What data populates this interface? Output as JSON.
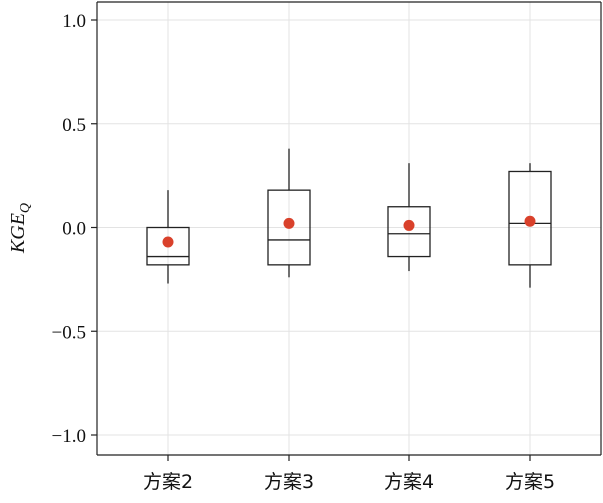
{
  "chart_data": {
    "type": "box",
    "ylabel": "KGE",
    "ylabel_subscript": "Q",
    "ylim": [
      -1.1,
      1.05
    ],
    "yticks": [
      1.0,
      0.5,
      0.0,
      -0.5,
      -1.0
    ],
    "ytick_labels": [
      "1.0",
      "0.5",
      "0.0",
      "−0.5",
      "−1.0"
    ],
    "grid": true,
    "categories": [
      "方案2",
      "方案3",
      "方案4",
      "方案5"
    ],
    "boxes": [
      {
        "whisker_low": -0.27,
        "q1": -0.18,
        "median": -0.14,
        "q3": 0.0,
        "whisker_high": 0.18,
        "mean": -0.07
      },
      {
        "whisker_low": -0.24,
        "q1": -0.18,
        "median": -0.06,
        "q3": 0.18,
        "whisker_high": 0.38,
        "mean": 0.02
      },
      {
        "whisker_low": -0.21,
        "q1": -0.14,
        "median": -0.03,
        "q3": 0.1,
        "whisker_high": 0.31,
        "mean": 0.01
      },
      {
        "whisker_low": -0.29,
        "q1": -0.18,
        "median": 0.02,
        "q3": 0.27,
        "whisker_high": 0.31,
        "mean": 0.03
      }
    ],
    "colors": {
      "box": "#222222",
      "mean": "#d9412b",
      "grid": "#e3e3e3"
    }
  }
}
